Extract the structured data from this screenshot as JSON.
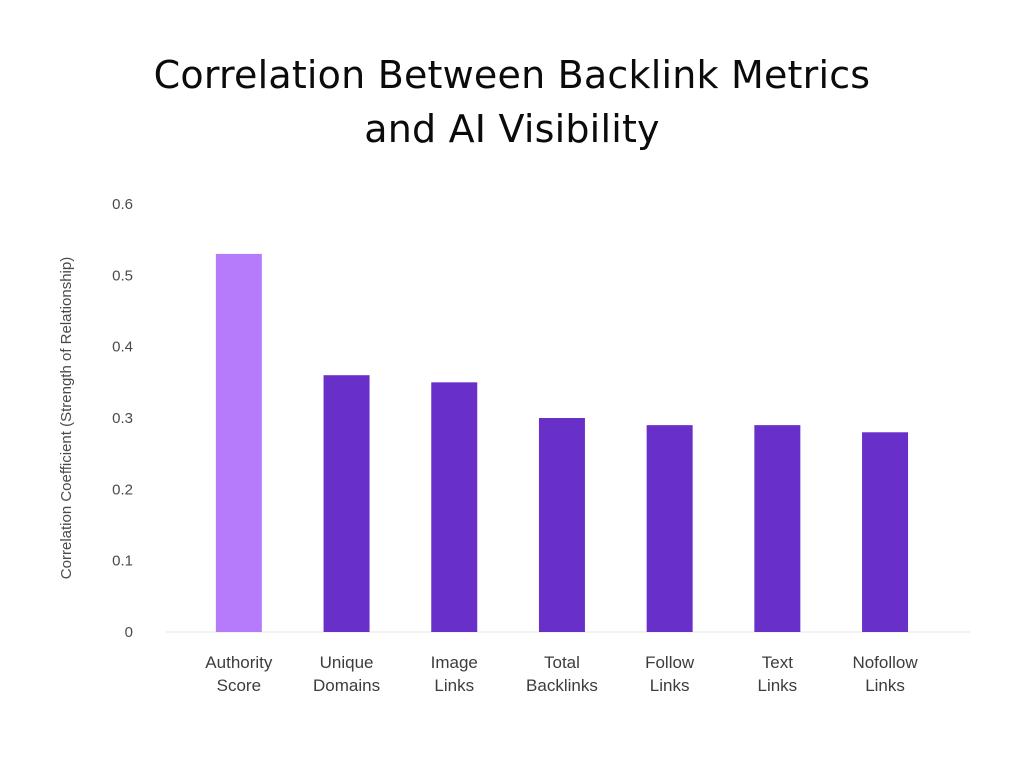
{
  "chart_data": {
    "type": "bar",
    "title_lines": [
      "Correlation Between Backlink Metrics",
      "and AI Visibility"
    ],
    "ylabel": "Correlation Coefficient (Strength of Relationship)",
    "xlabel": "",
    "ylim": [
      0,
      0.6
    ],
    "yticks": [
      "0",
      "0.1",
      "0.2",
      "0.3",
      "0.4",
      "0.5",
      "0.6"
    ],
    "ytick_values": [
      0,
      0.1,
      0.2,
      0.3,
      0.4,
      0.5,
      0.6
    ],
    "grid": false,
    "categories": [
      [
        "Authority",
        "Score"
      ],
      [
        "Unique",
        "Domains"
      ],
      [
        "Image",
        "Links"
      ],
      [
        "Total",
        "Backlinks"
      ],
      [
        "Follow",
        "Links"
      ],
      [
        "Text",
        "Links"
      ],
      [
        "Nofollow",
        "Links"
      ]
    ],
    "values": [
      0.53,
      0.36,
      0.35,
      0.3,
      0.29,
      0.29,
      0.28
    ],
    "colors": [
      "#b57bfa",
      "#6930c9",
      "#6930c9",
      "#6930c9",
      "#6930c9",
      "#6930c9",
      "#6930c9"
    ],
    "axis_color": "#e6e6e6"
  }
}
